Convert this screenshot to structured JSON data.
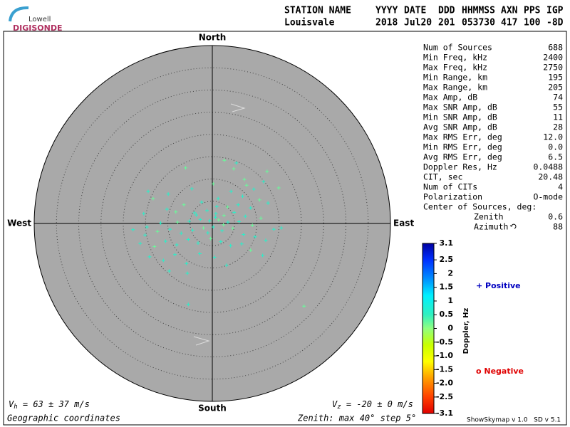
{
  "logo": {
    "top": "Lowell",
    "bottom": "DIGISONDE"
  },
  "header": {
    "labels": [
      "STATION NAME",
      "YYYY",
      "DATE",
      "DDD",
      "HHMMSS",
      "AXN",
      "PPS",
      "IGP"
    ],
    "values": [
      "Louisvale",
      "2018",
      "Jul20",
      "201",
      "053730",
      "417",
      "100",
      "-8D"
    ]
  },
  "stats": {
    "rows": [
      {
        "label": "Num of Sources",
        "value": "688"
      },
      {
        "label": "Min Freq, kHz",
        "value": "2400"
      },
      {
        "label": "Max Freq, kHz",
        "value": "2750"
      },
      {
        "label": "Min Range, km",
        "value": "195"
      },
      {
        "label": "Max Range, km",
        "value": "205"
      },
      {
        "label": "Max Amp, dB",
        "value": "74"
      },
      {
        "label": "Max SNR Amp, dB",
        "value": "55"
      },
      {
        "label": "Min SNR Amp, dB",
        "value": "11"
      },
      {
        "label": "Avg SNR Amp, dB",
        "value": "28"
      },
      {
        "label": "Max RMS Err, deg",
        "value": "12.0"
      },
      {
        "label": "Min RMS Err, deg",
        "value": "0.0"
      },
      {
        "label": "Avg RMS Err, deg",
        "value": "6.5"
      },
      {
        "label": "Doppler Res, Hz",
        "value": "0.0488"
      },
      {
        "label": "CIT, sec",
        "value": "20.48"
      },
      {
        "label": "Num of CITs",
        "value": "4"
      },
      {
        "label": "Polarization",
        "value": "O-mode"
      }
    ],
    "center": {
      "title": "Center of Sources, deg:",
      "rows": [
        {
          "label": "Zenith",
          "value": "0.6"
        },
        {
          "label": "Azimuth",
          "value": "88"
        }
      ]
    }
  },
  "chart_data": {
    "type": "skymap",
    "directions": {
      "north": "North",
      "south": "South",
      "east": "East",
      "west": "West"
    },
    "rlim": [
      0,
      40
    ],
    "rticks": [
      5,
      10,
      15,
      20,
      25,
      30,
      35
    ],
    "x": [
      2.7,
      5.4,
      4.8,
      12.3,
      11.5,
      7.2,
      9.3,
      7.7,
      -6,
      -14.4,
      -13.3,
      -9.9,
      -4.6,
      0.2,
      4.2,
      6.8,
      14.9,
      12.5,
      10.6,
      8.6,
      5.8,
      3.4,
      1.3,
      -2.4,
      -6.4,
      -10.2,
      -15.4,
      -8.2,
      -4.0,
      -1.2,
      0.8,
      2.6,
      4.9,
      7.4,
      10.9,
      13.8,
      15.5,
      9.0,
      6.0,
      3.5,
      1.4,
      -0.6,
      -2.7,
      -5.2,
      -7.8,
      -11.6,
      -14.7,
      -17.8,
      -15.1,
      -12.3,
      -9.5,
      -7.0,
      -4.4,
      -2.0,
      0.2,
      2.2,
      4.6,
      7.0,
      9.6,
      12.0,
      -16.2,
      -13.0,
      -10.5,
      -8.0,
      -5.4,
      -3.2,
      -0.4,
      1.9,
      4.1,
      6.6,
      8.6,
      11.3,
      -14.1,
      -11.0,
      -8.4,
      -5.8,
      -2.8,
      0.5,
      3.2,
      -9.7,
      -5.6,
      -5.4,
      20.6,
      1.0,
      -1.0,
      2.5,
      0.7,
      -3.6
    ],
    "y": [
      14.2,
      13.6,
      12.3,
      11.7,
      9.4,
      9.9,
      7.7,
      8.6,
      12.5,
      7.2,
      5.6,
      6.6,
      7.8,
      8.9,
      7.2,
      6.1,
      8.0,
      4.6,
      5.3,
      3.5,
      4.2,
      3.7,
      5.6,
      4.8,
      4.2,
      3.2,
      2.2,
      2.6,
      2.4,
      2.9,
      2.2,
      1.8,
      2.5,
      1.6,
      1.2,
      -1.3,
      -1.0,
      -0.4,
      0.4,
      0.3,
      0.8,
      0.6,
      0.9,
      0.5,
      0.3,
      0.1,
      -0.8,
      -1.4,
      -2.6,
      -1.8,
      -1.3,
      -2.2,
      -1.5,
      -1.0,
      -0.8,
      -1.6,
      -1.1,
      -2.5,
      -3.0,
      -3.8,
      -4.5,
      -5.2,
      -4.0,
      -4.8,
      -3.6,
      -4.4,
      -3.4,
      -4.1,
      -5.0,
      -4.6,
      -6.0,
      -7.2,
      -7.5,
      -8.3,
      -7.0,
      -9.0,
      -6.8,
      -7.6,
      -9.4,
      -10.7,
      -11.2,
      -18.2,
      -18.6,
      3.8,
      -2.1,
      -0.3,
      1.4,
      1.9
    ],
    "doppler": [
      0.2,
      0.6,
      0.2,
      0.2,
      0.6,
      0.2,
      0.6,
      0.2,
      0.2,
      0.6,
      0.2,
      0.6,
      0.6,
      0.2,
      0.6,
      0.6,
      0.2,
      0.6,
      0.2,
      0.6,
      0.6,
      0.2,
      0.6,
      0.6,
      0.2,
      0.6,
      0.6,
      0.2,
      0.6,
      0.6,
      0.6,
      0.2,
      0.6,
      0.6,
      0.2,
      0.6,
      0.6,
      0.2,
      0.6,
      0.6,
      0.2,
      0.6,
      0.6,
      0.6,
      0.2,
      0.6,
      0.6,
      0.6,
      0.6,
      0.2,
      0.6,
      0.6,
      0.6,
      0.2,
      0.6,
      0.6,
      0.2,
      0.6,
      0.6,
      0.6,
      0.6,
      0.2,
      0.6,
      0.6,
      0.6,
      0.6,
      0.2,
      0.6,
      0.6,
      0.6,
      0.2,
      0.6,
      0.6,
      0.6,
      0.6,
      0.6,
      0.6,
      0.6,
      0.6,
      0.6,
      0.6,
      0.6,
      0.2,
      0.6,
      0.6,
      0.2,
      0.6,
      0.6
    ],
    "colorbar": {
      "title": "Doppler, Hz",
      "lim": [
        -3.1,
        3.1
      ],
      "ticks": [
        3.1,
        2.5,
        2,
        1.5,
        1,
        0.5,
        0,
        -0.5,
        {
          "value": -1,
          "label": "-1.0"
        },
        -1.5,
        {
          "value": -2,
          "label": "-2.0"
        },
        -2.5,
        -3.1
      ],
      "stops": [
        {
          "value": 3.1,
          "color": "#0000a0"
        },
        {
          "value": 2.5,
          "color": "#0030ff"
        },
        {
          "value": 1.8,
          "color": "#0090ff"
        },
        {
          "value": 1.2,
          "color": "#00f0ff"
        },
        {
          "value": 0.5,
          "color": "#30f0c0"
        },
        {
          "value": 0,
          "color": "#90ff80"
        },
        {
          "value": -0.6,
          "color": "#c8ff00"
        },
        {
          "value": -1.2,
          "color": "#ffff00"
        },
        {
          "value": -1.8,
          "color": "#ffa000"
        },
        {
          "value": -2.5,
          "color": "#ff4000"
        },
        {
          "value": -3.1,
          "color": "#e00000"
        }
      ]
    },
    "legend": {
      "positive": "+ Positive",
      "positive_color": "#0000c0",
      "negative": "o Negative",
      "negative_color": "#e00000"
    }
  },
  "footer": {
    "vh": {
      "symbol": "V",
      "sub": "h",
      "text": " = 63 ± 37 m/s"
    },
    "vz": {
      "symbol": "V",
      "sub": "z",
      "text": " = -20 ± 0 m/s"
    },
    "coords": "Geographic coordinates",
    "zenith": "Zenith: max 40°  step 5°",
    "version": "ShowSkymap v 1.0   SD v 5.1"
  }
}
